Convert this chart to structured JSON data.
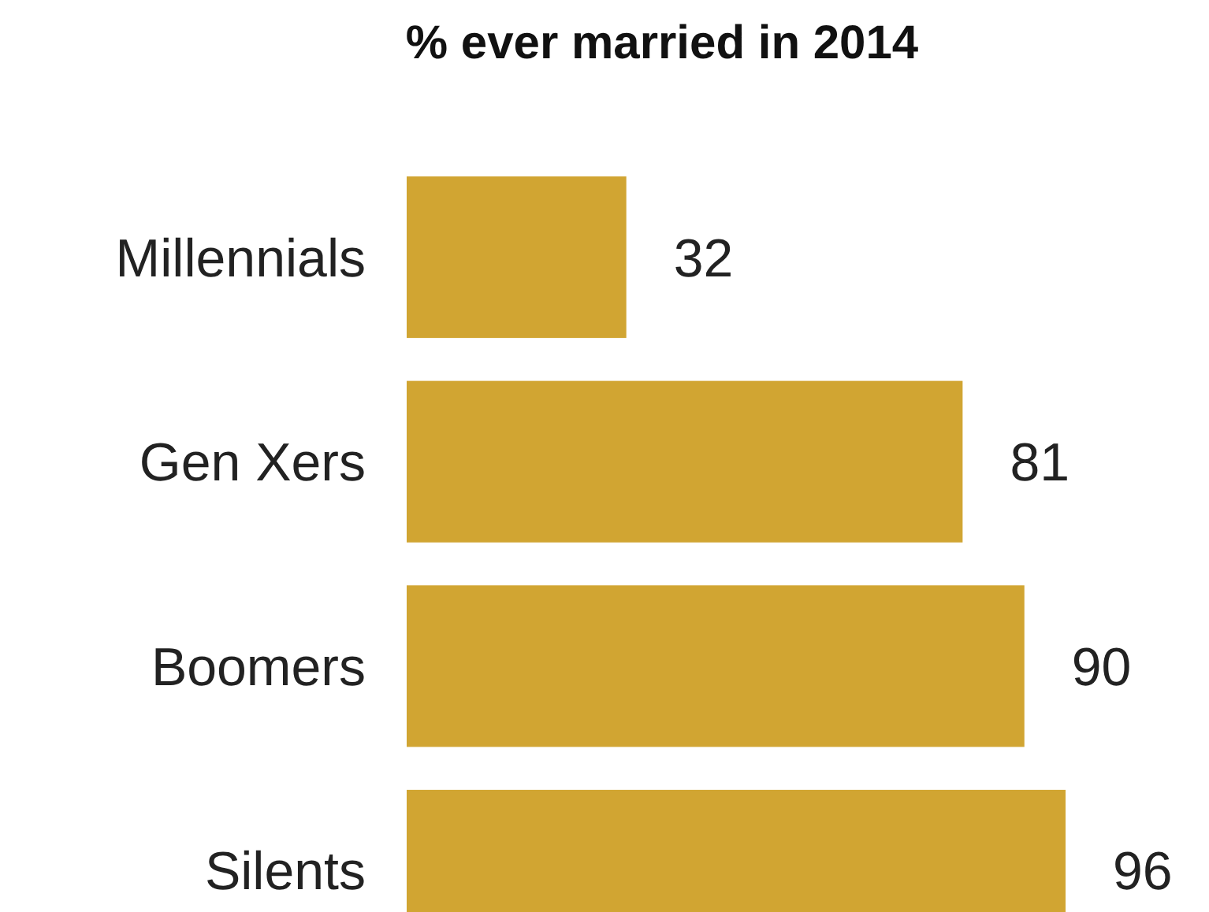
{
  "chart_data": {
    "type": "bar",
    "orientation": "horizontal",
    "title": "% ever married in 2014",
    "categories": [
      "Millennials",
      "Gen Xers",
      "Boomers",
      "Silents"
    ],
    "values": [
      32,
      81,
      90,
      96
    ],
    "color": "#d1a532",
    "data_labels": true
  }
}
